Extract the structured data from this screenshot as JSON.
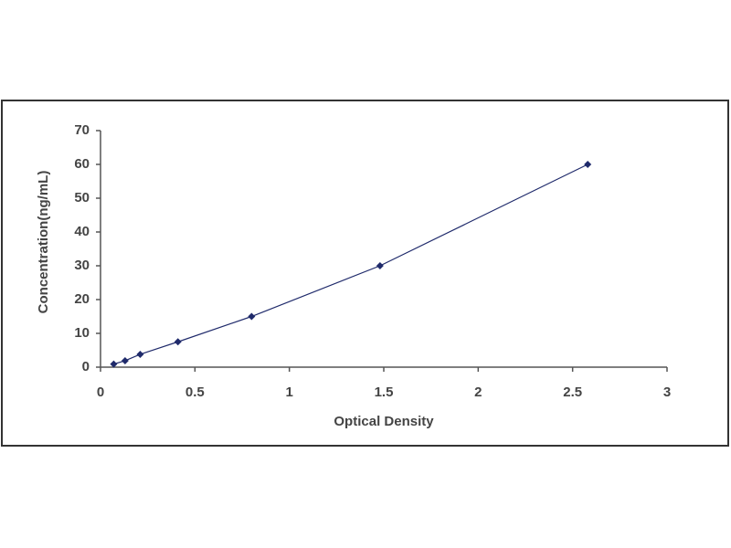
{
  "chart_data": {
    "type": "scatter",
    "x_label": "Optical Density",
    "y_label": "Concentration(ng/mL)",
    "series": [
      {
        "color": "#1f2a6b",
        "x": [
          0.07,
          0.13,
          0.21,
          0.41,
          0.8,
          1.48,
          2.58
        ],
        "values": [
          0.9,
          1.9,
          3.8,
          7.5,
          15,
          30,
          60
        ]
      }
    ],
    "xlim": [
      0,
      3
    ],
    "xticks": [
      0,
      0.5,
      1,
      1.5,
      2,
      2.5,
      3
    ],
    "ylim": [
      0,
      70
    ],
    "yticks": [
      0,
      10,
      20,
      30,
      40,
      50,
      60,
      70
    ],
    "grid": false
  }
}
